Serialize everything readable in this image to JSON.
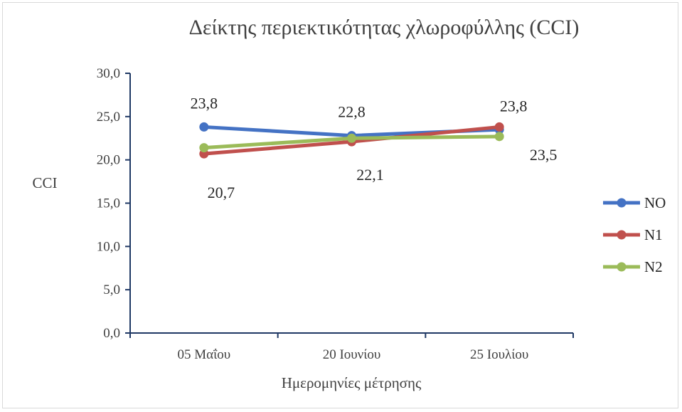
{
  "chart_data": {
    "type": "line",
    "title": "Δείκτης περιεκτικότητας χλωροφύλλης (CCI)",
    "xlabel": "Ημερομηνίες μέτρησης",
    "ylabel": "CCI",
    "categories": [
      "05 Μαΐου",
      "20 Ιουνίου",
      "25 Ιουλίου"
    ],
    "ylim": [
      0,
      30
    ],
    "yticks": [
      "0,0",
      "5,0",
      "10,0",
      "15,0",
      "20,0",
      "25,0",
      "30,0"
    ],
    "grid": false,
    "legend_position": "right",
    "series": [
      {
        "name": "NO",
        "color": "#4472c4",
        "values": [
          23.8,
          22.8,
          23.5
        ]
      },
      {
        "name": "N1",
        "color": "#c0504d",
        "values": [
          20.7,
          22.1,
          23.8
        ]
      },
      {
        "name": "N2",
        "color": "#9bbb59",
        "values": [
          21.4,
          22.5,
          22.7
        ]
      }
    ],
    "data_labels": [
      {
        "text": "23,8",
        "series": 0,
        "index": 0
      },
      {
        "text": "22,8",
        "series": 0,
        "index": 1
      },
      {
        "text": "23,5",
        "series": 0,
        "index": 2
      },
      {
        "text": "20,7",
        "series": 1,
        "index": 0
      },
      {
        "text": "22,1",
        "series": 1,
        "index": 1
      },
      {
        "text": "23,8",
        "series": 1,
        "index": 2
      }
    ]
  }
}
